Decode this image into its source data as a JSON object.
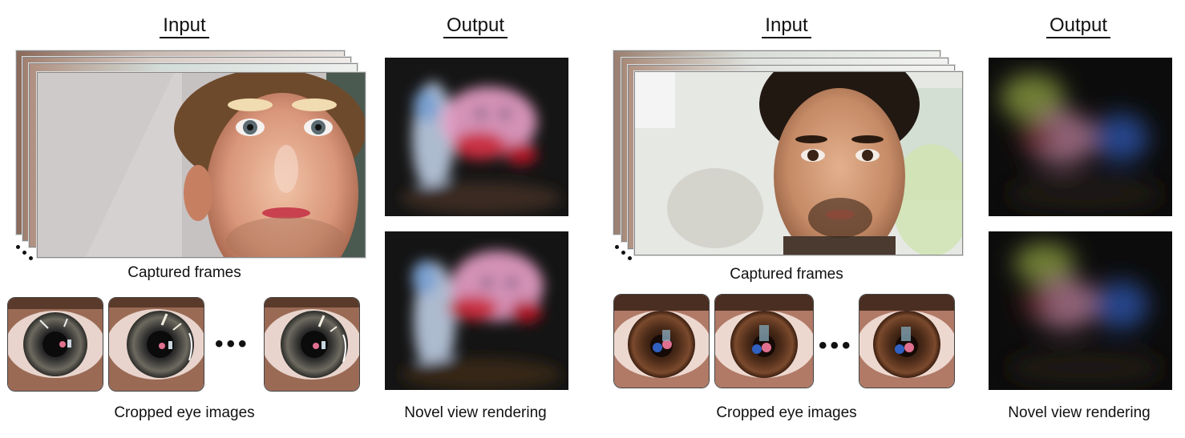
{
  "panels": [
    {
      "input_heading": "Input",
      "output_heading": "Output",
      "frames_caption": "Captured frames",
      "eyes_caption": "Cropped eye images",
      "render_caption": "Novel view rendering",
      "ellipsis": "•••"
    },
    {
      "input_heading": "Input",
      "output_heading": "Output",
      "frames_caption": "Captured frames",
      "eyes_caption": "Cropped eye images",
      "render_caption": "Novel view rendering",
      "ellipsis": "•••"
    }
  ]
}
